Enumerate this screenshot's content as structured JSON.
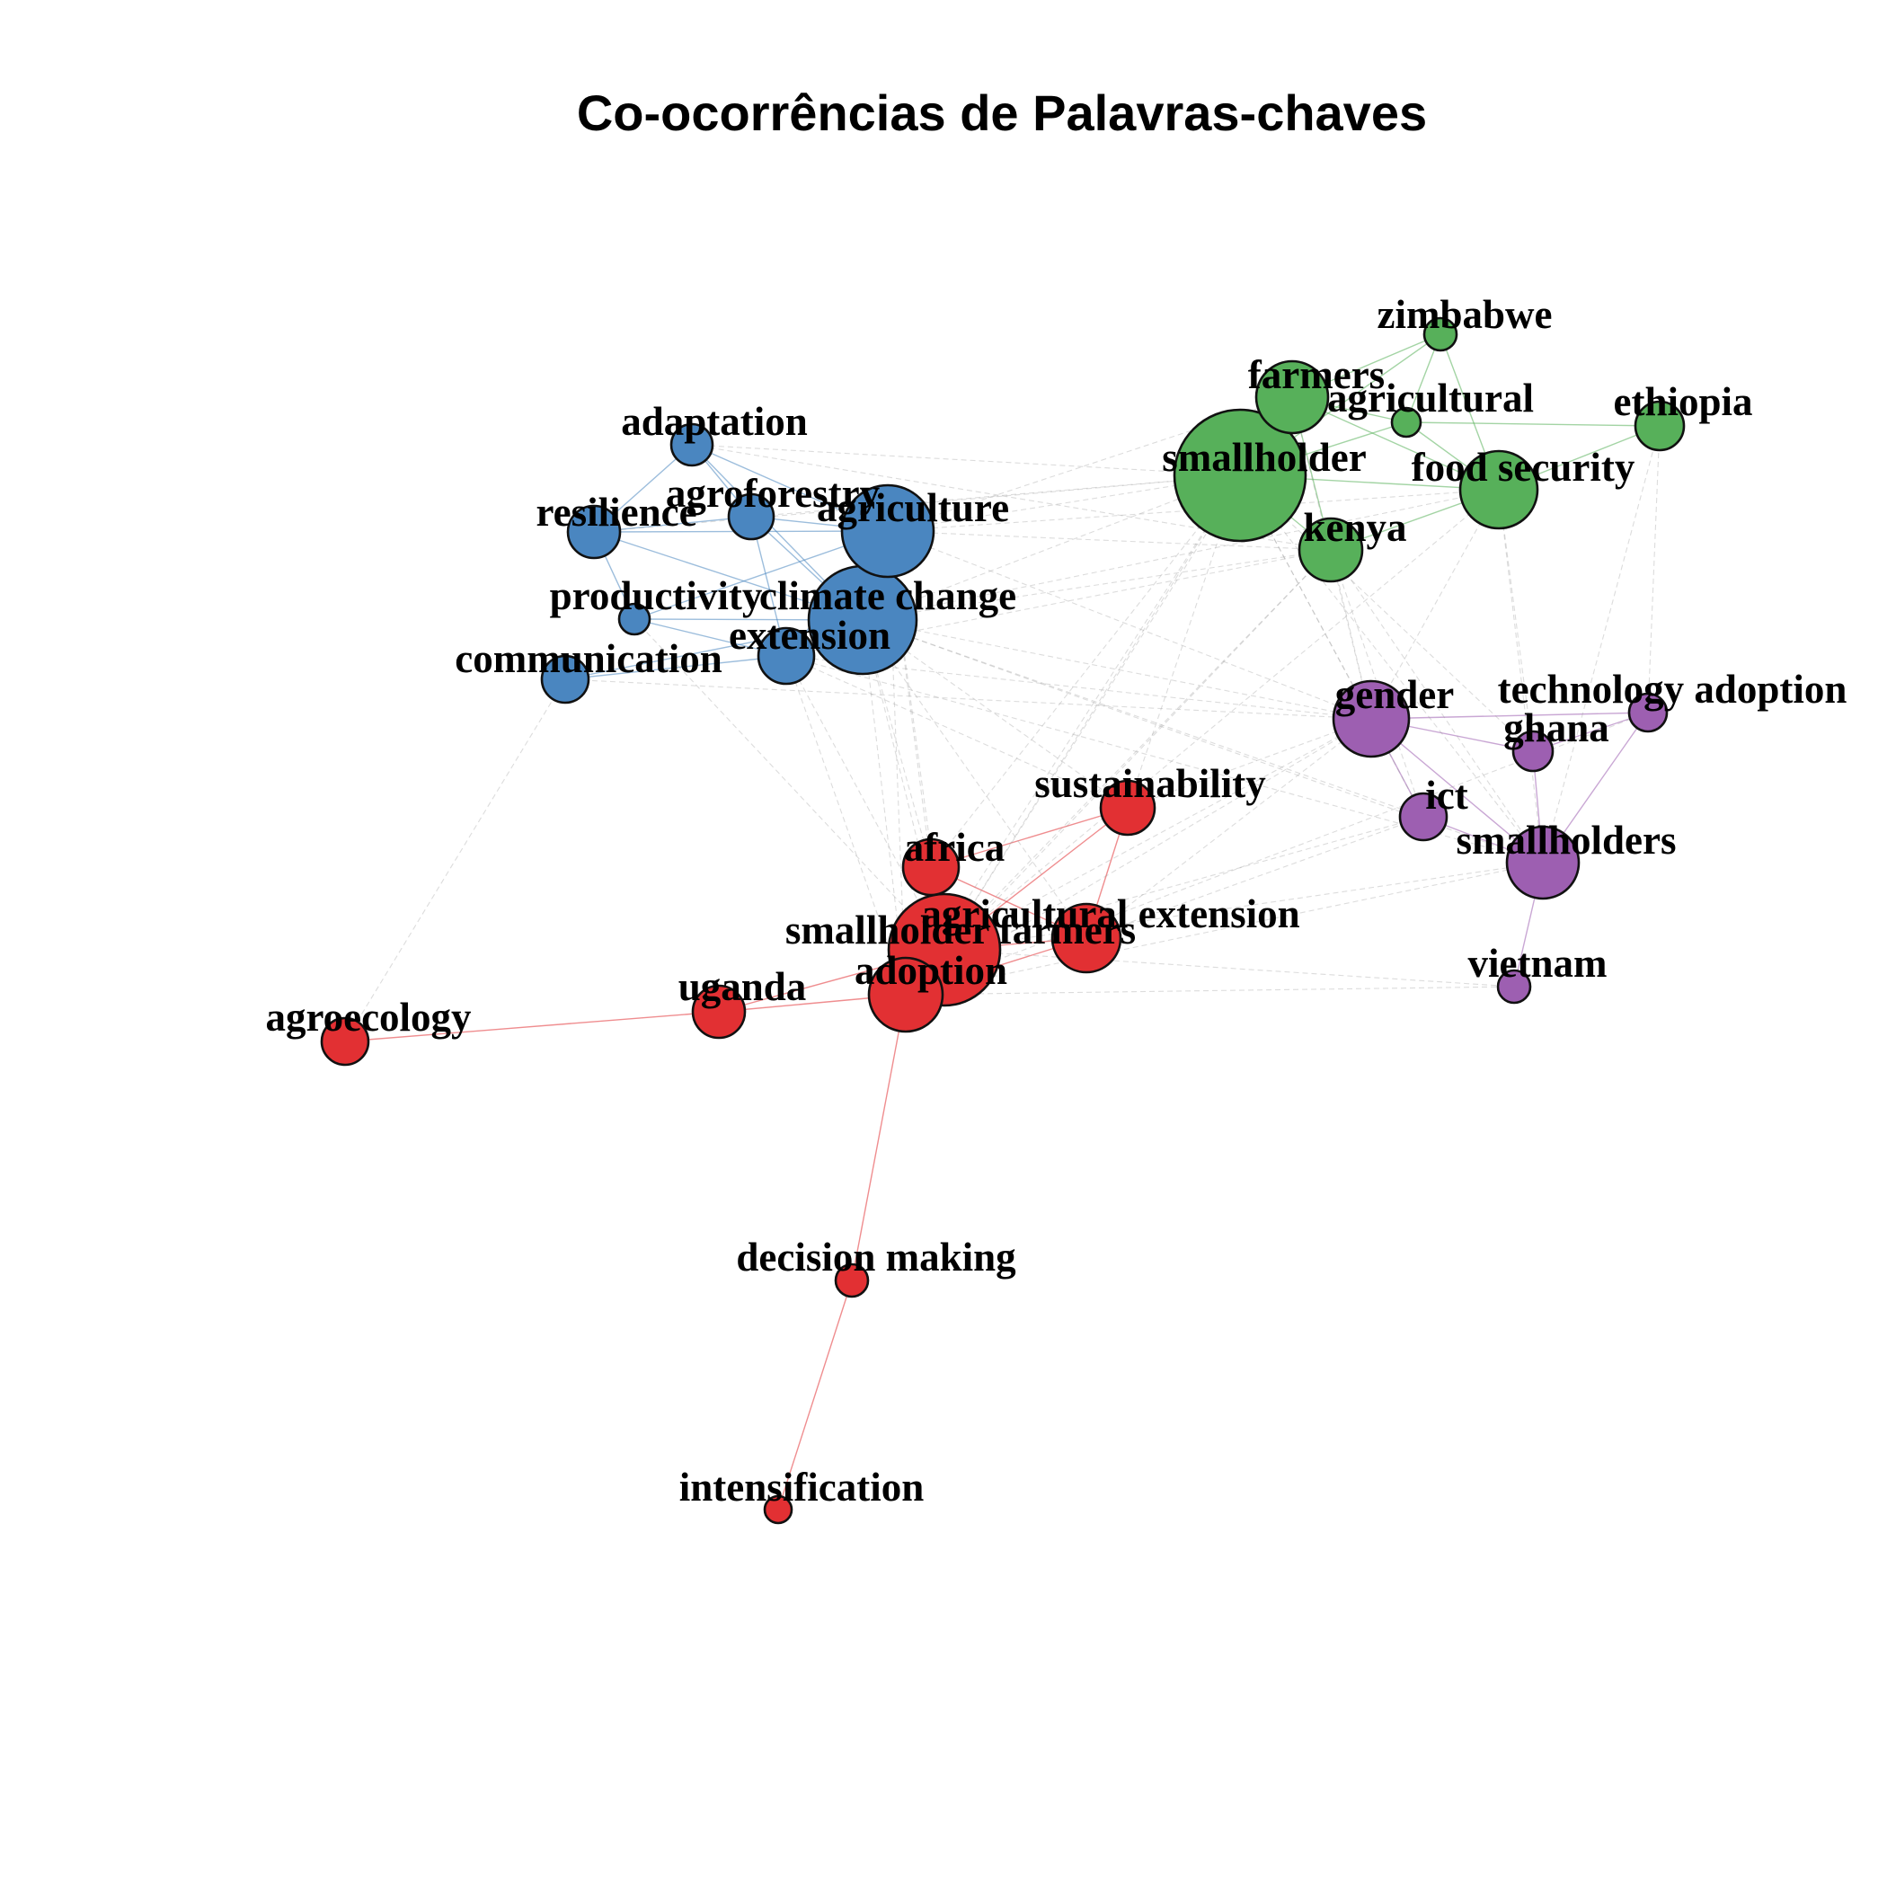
{
  "title": "Co-ocorrências de Palavras-chaves",
  "clusters": [
    {
      "id": "blue",
      "color": "#4a86c0"
    },
    {
      "id": "green",
      "color": "#57b05a"
    },
    {
      "id": "purple",
      "color": "#9d5fb1"
    },
    {
      "id": "red",
      "color": "#e23033"
    }
  ],
  "nodes": [
    {
      "id": "adaptation",
      "label": "adaptation",
      "cluster": "blue"
    },
    {
      "id": "agroforestry",
      "label": "agroforestry",
      "cluster": "blue"
    },
    {
      "id": "resilience",
      "label": "resilience",
      "cluster": "blue"
    },
    {
      "id": "agriculture",
      "label": "agriculture",
      "cluster": "blue"
    },
    {
      "id": "productivity",
      "label": "productivity",
      "cluster": "blue"
    },
    {
      "id": "climate_change",
      "label": "climate change",
      "cluster": "blue"
    },
    {
      "id": "extension",
      "label": "extension",
      "cluster": "blue"
    },
    {
      "id": "communication",
      "label": "communication",
      "cluster": "blue"
    },
    {
      "id": "zimbabwe",
      "label": "zimbabwe",
      "cluster": "green"
    },
    {
      "id": "farmers",
      "label": "farmers",
      "cluster": "green"
    },
    {
      "id": "agricultural",
      "label": "agricultural",
      "cluster": "green"
    },
    {
      "id": "ethiopia",
      "label": "ethiopia",
      "cluster": "green"
    },
    {
      "id": "smallholder",
      "label": "smallholder",
      "cluster": "green"
    },
    {
      "id": "food_security",
      "label": "food security",
      "cluster": "green"
    },
    {
      "id": "kenya",
      "label": "kenya",
      "cluster": "green"
    },
    {
      "id": "gender",
      "label": "gender",
      "cluster": "purple"
    },
    {
      "id": "technology_adoption",
      "label": "technology adoption",
      "cluster": "purple"
    },
    {
      "id": "ghana",
      "label": "ghana",
      "cluster": "purple"
    },
    {
      "id": "ict",
      "label": "ict",
      "cluster": "purple"
    },
    {
      "id": "smallholders",
      "label": "smallholders",
      "cluster": "purple"
    },
    {
      "id": "vietnam",
      "label": "vietnam",
      "cluster": "purple"
    },
    {
      "id": "sustainability",
      "label": "sustainability",
      "cluster": "red"
    },
    {
      "id": "africa",
      "label": "africa",
      "cluster": "red"
    },
    {
      "id": "agricultural_extension",
      "label": "agricultural extension",
      "cluster": "red"
    },
    {
      "id": "smallholder_farmers",
      "label": "smallholder farmers",
      "cluster": "red"
    },
    {
      "id": "adoption",
      "label": "adoption",
      "cluster": "red"
    },
    {
      "id": "uganda",
      "label": "uganda",
      "cluster": "red"
    },
    {
      "id": "agroecology",
      "label": "agroecology",
      "cluster": "red"
    },
    {
      "id": "decision_making",
      "label": "decision making",
      "cluster": "red"
    },
    {
      "id": "intensification",
      "label": "intensification",
      "cluster": "red"
    }
  ],
  "edges": [
    [
      "adaptation",
      "agroforestry"
    ],
    [
      "adaptation",
      "resilience"
    ],
    [
      "adaptation",
      "agriculture"
    ],
    [
      "adaptation",
      "climate_change"
    ],
    [
      "agroforestry",
      "resilience"
    ],
    [
      "agroforestry",
      "agriculture"
    ],
    [
      "agroforestry",
      "climate_change"
    ],
    [
      "agroforestry",
      "extension"
    ],
    [
      "resilience",
      "agriculture"
    ],
    [
      "resilience",
      "climate_change"
    ],
    [
      "resilience",
      "productivity"
    ],
    [
      "productivity",
      "climate_change"
    ],
    [
      "productivity",
      "extension"
    ],
    [
      "productivity",
      "agriculture"
    ],
    [
      "climate_change",
      "agriculture"
    ],
    [
      "climate_change",
      "extension"
    ],
    [
      "extension",
      "agriculture"
    ],
    [
      "communication",
      "extension"
    ],
    [
      "communication",
      "climate_change"
    ],
    [
      "zimbabwe",
      "farmers"
    ],
    [
      "zimbabwe",
      "agricultural"
    ],
    [
      "zimbabwe",
      "smallholder"
    ],
    [
      "zimbabwe",
      "food_security"
    ],
    [
      "farmers",
      "agricultural"
    ],
    [
      "farmers",
      "smallholder"
    ],
    [
      "farmers",
      "kenya"
    ],
    [
      "farmers",
      "food_security"
    ],
    [
      "agricultural",
      "ethiopia"
    ],
    [
      "agricultural",
      "smallholder"
    ],
    [
      "agricultural",
      "food_security"
    ],
    [
      "ethiopia",
      "food_security"
    ],
    [
      "smallholder",
      "food_security"
    ],
    [
      "smallholder",
      "kenya"
    ],
    [
      "kenya",
      "food_security"
    ],
    [
      "gender",
      "technology_adoption"
    ],
    [
      "gender",
      "ghana"
    ],
    [
      "gender",
      "ict"
    ],
    [
      "gender",
      "smallholders"
    ],
    [
      "technology_adoption",
      "ghana"
    ],
    [
      "technology_adoption",
      "smallholders"
    ],
    [
      "ghana",
      "smallholders"
    ],
    [
      "ict",
      "smallholders"
    ],
    [
      "smallholders",
      "vietnam"
    ],
    [
      "sustainability",
      "africa"
    ],
    [
      "sustainability",
      "smallholder_farmers"
    ],
    [
      "sustainability",
      "agricultural_extension"
    ],
    [
      "africa",
      "smallholder_farmers"
    ],
    [
      "africa",
      "adoption"
    ],
    [
      "africa",
      "agricultural_extension"
    ],
    [
      "smallholder_farmers",
      "adoption"
    ],
    [
      "smallholder_farmers",
      "agricultural_extension"
    ],
    [
      "smallholder_farmers",
      "uganda"
    ],
    [
      "adoption",
      "uganda"
    ],
    [
      "adoption",
      "agricultural_extension"
    ],
    [
      "uganda",
      "agroecology"
    ],
    [
      "adoption",
      "decision_making"
    ],
    [
      "decision_making",
      "intensification"
    ],
    [
      "agriculture",
      "smallholder"
    ],
    [
      "agriculture",
      "farmers"
    ],
    [
      "agriculture",
      "kenya"
    ],
    [
      "agriculture",
      "food_security"
    ],
    [
      "climate_change",
      "smallholder"
    ],
    [
      "climate_change",
      "kenya"
    ],
    [
      "climate_change",
      "food_security"
    ],
    [
      "climate_change",
      "gender"
    ],
    [
      "climate_change",
      "smallholder_farmers"
    ],
    [
      "climate_change",
      "adoption"
    ],
    [
      "climate_change",
      "africa"
    ],
    [
      "climate_change",
      "sustainability"
    ],
    [
      "climate_change",
      "agricultural_extension"
    ],
    [
      "climate_change",
      "ict"
    ],
    [
      "climate_change",
      "smallholders"
    ],
    [
      "agriculture",
      "gender"
    ],
    [
      "agriculture",
      "smallholder_farmers"
    ],
    [
      "agriculture",
      "adoption"
    ],
    [
      "agriculture",
      "africa"
    ],
    [
      "extension",
      "smallholder_farmers"
    ],
    [
      "extension",
      "adoption"
    ],
    [
      "extension",
      "gender"
    ],
    [
      "extension",
      "kenya"
    ],
    [
      "extension",
      "smallholders"
    ],
    [
      "resilience",
      "smallholder"
    ],
    [
      "adaptation",
      "smallholder"
    ],
    [
      "agroforestry",
      "smallholder"
    ],
    [
      "adaptation",
      "kenya"
    ],
    [
      "smallholder",
      "gender"
    ],
    [
      "smallholder",
      "ghana"
    ],
    [
      "smallholder",
      "ict"
    ],
    [
      "smallholder",
      "smallholders"
    ],
    [
      "smallholder",
      "smallholder_farmers"
    ],
    [
      "smallholder",
      "adoption"
    ],
    [
      "smallholder",
      "sustainability"
    ],
    [
      "smallholder",
      "africa"
    ],
    [
      "kenya",
      "gender"
    ],
    [
      "kenya",
      "ict"
    ],
    [
      "kenya",
      "smallholders"
    ],
    [
      "kenya",
      "smallholder_farmers"
    ],
    [
      "kenya",
      "adoption"
    ],
    [
      "food_security",
      "gender"
    ],
    [
      "food_security",
      "smallholders"
    ],
    [
      "food_security",
      "smallholder_farmers"
    ],
    [
      "food_security",
      "ghana"
    ],
    [
      "farmers",
      "gender"
    ],
    [
      "farmers",
      "smallholder_farmers"
    ],
    [
      "ethiopia",
      "technology_adoption"
    ],
    [
      "ethiopia",
      "smallholders"
    ],
    [
      "gender",
      "smallholder_farmers"
    ],
    [
      "gender",
      "adoption"
    ],
    [
      "gender",
      "agricultural_extension"
    ],
    [
      "gender",
      "sustainability"
    ],
    [
      "ict",
      "smallholder_farmers"
    ],
    [
      "ict",
      "agricultural_extension"
    ],
    [
      "smallholders",
      "adoption"
    ],
    [
      "smallholders",
      "smallholder_farmers"
    ],
    [
      "vietnam",
      "adoption"
    ],
    [
      "vietnam",
      "smallholder_farmers"
    ],
    [
      "technology_adoption",
      "adoption"
    ],
    [
      "communication",
      "agroecology"
    ],
    [
      "communication",
      "gender"
    ],
    [
      "extension",
      "sustainability"
    ],
    [
      "productivity",
      "smallholder_farmers"
    ]
  ]
}
